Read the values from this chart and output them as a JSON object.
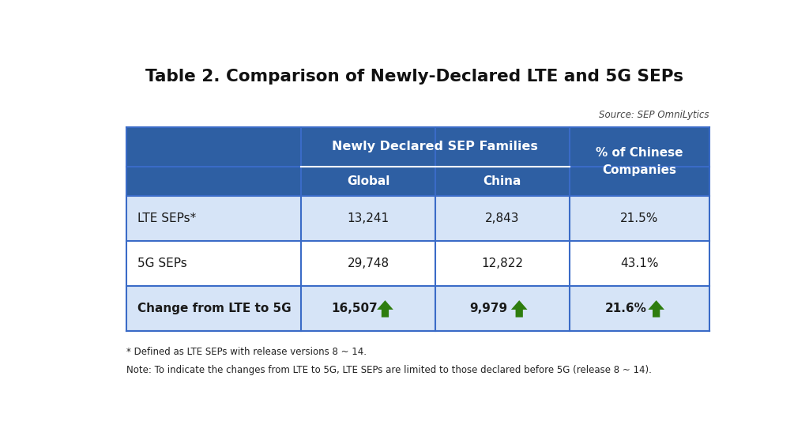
{
  "title": "Table 2. Comparison of Newly-Declared LTE and 5G SEPs",
  "source": "Source: SEP OmniLytics",
  "header_bg": "#2E5FA3",
  "border_color": "#3A6BC7",
  "light_blue_bg": "#D6E4F7",
  "white_bg": "#FFFFFF",
  "rows": [
    [
      "LTE SEPs*",
      "13,241",
      "2,843",
      "21.5%"
    ],
    [
      "5G SEPs",
      "29,748",
      "12,822",
      "43.1%"
    ],
    [
      "Change from LTE to 5G",
      "16,507",
      "9,979",
      "21.6%"
    ]
  ],
  "arrow_color": "#2E7D0E",
  "note1": "* Defined as LTE SEPs with release versions 8 ~ 14.",
  "note2": "Note: To indicate the changes from LTE to 5G, LTE SEPs are limited to those declared before 5G (release 8 ~ 14)."
}
